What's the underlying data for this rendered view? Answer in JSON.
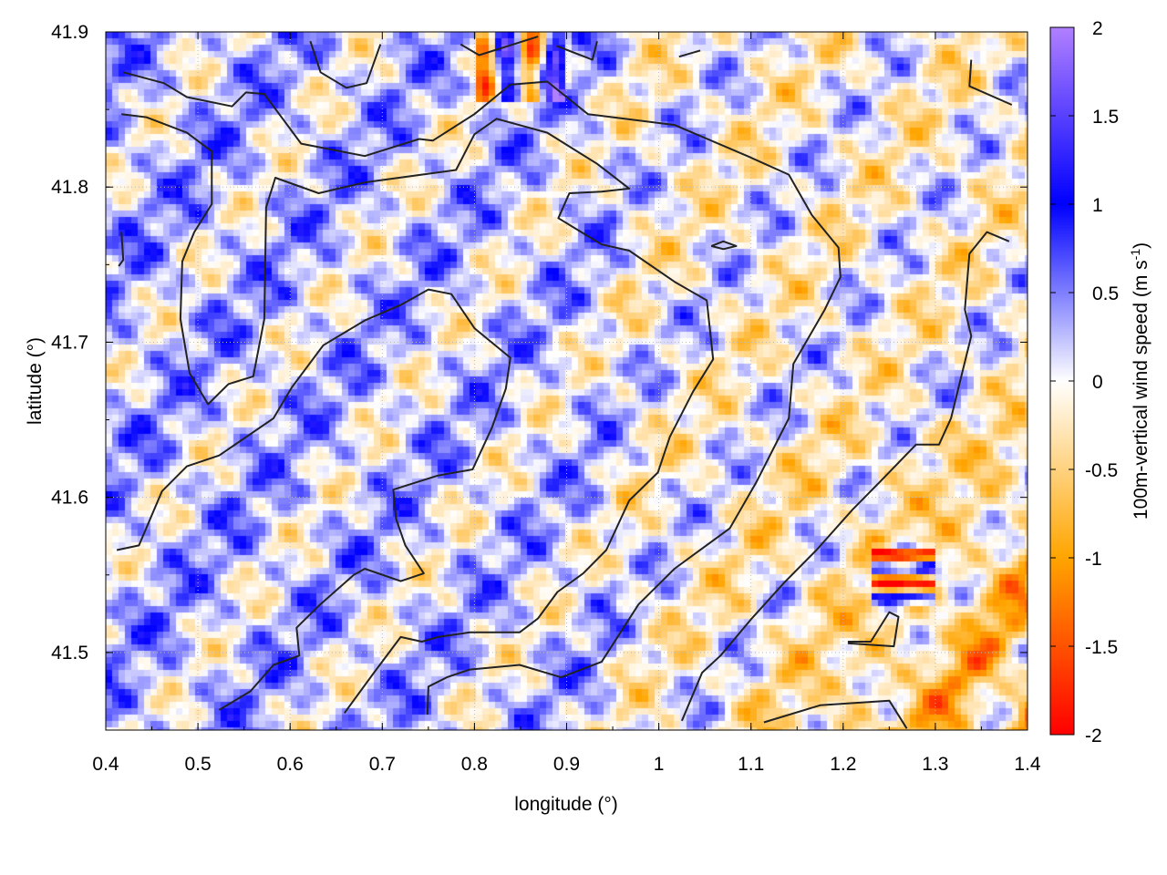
{
  "chart_data": {
    "type": "heatmap",
    "title": "",
    "xlabel": "longitude (°)",
    "ylabel": "latitude (°)",
    "xlim": [
      0.4,
      1.4
    ],
    "ylim": [
      41.45,
      41.9
    ],
    "xticks": [
      "0.4",
      "0.5",
      "0.6",
      "0.7",
      "0.8",
      "0.9",
      "1",
      "1.1",
      "1.2",
      "1.3",
      "1.4"
    ],
    "yticks": [
      "41.5",
      "41.6",
      "41.7",
      "41.8",
      "41.9"
    ],
    "grid": true,
    "colorbar": {
      "label": "100m-vertical wind speed (m s",
      "label_sup": "-1",
      "label_end": ")",
      "range": [
        -2,
        2
      ],
      "ticks": [
        "2",
        "1.5",
        "1",
        "0.5",
        "0",
        "-0.5",
        "-1",
        "-1.5",
        "-2"
      ],
      "palette": [
        {
          "v": -2,
          "color": "#ff0000"
        },
        {
          "v": -1,
          "color": "#ffa500"
        },
        {
          "v": 0,
          "color": "#ffffff"
        },
        {
          "v": 1,
          "color": "#0000ff"
        },
        {
          "v": 2,
          "color": "#b080ff"
        }
      ]
    },
    "contour_color": "#222222",
    "contours": [
      [
        [
          0.419,
          41.874
        ],
        [
          0.463,
          41.867
        ],
        [
          0.488,
          41.858
        ],
        [
          0.537,
          41.852
        ],
        [
          0.552,
          41.861
        ],
        [
          0.572,
          41.86
        ],
        [
          0.612,
          41.828
        ],
        [
          0.681,
          41.82
        ],
        [
          0.74,
          41.831
        ],
        [
          0.755,
          41.83
        ],
        [
          0.8,
          41.847
        ],
        [
          0.839,
          41.866
        ],
        [
          0.879,
          41.868
        ],
        [
          0.923,
          41.847
        ],
        [
          1.017,
          41.84
        ],
        [
          1.096,
          41.82
        ],
        [
          1.141,
          41.808
        ],
        [
          1.166,
          41.782
        ],
        [
          1.195,
          41.761
        ],
        [
          1.197,
          41.742
        ],
        [
          1.18,
          41.721
        ],
        [
          1.146,
          41.686
        ],
        [
          1.141,
          41.651
        ],
        [
          1.106,
          41.61
        ],
        [
          1.077,
          41.58
        ],
        [
          1.017,
          41.554
        ],
        [
          0.978,
          41.531
        ],
        [
          0.938,
          41.494
        ],
        [
          0.894,
          41.484
        ],
        [
          0.849,
          41.492
        ],
        [
          0.795,
          41.489
        ],
        [
          0.77,
          41.484
        ],
        [
          0.75,
          41.478
        ],
        [
          0.749,
          41.46
        ]
      ],
      [
        [
          0.417,
          41.847
        ],
        [
          0.444,
          41.845
        ],
        [
          0.488,
          41.835
        ],
        [
          0.515,
          41.823
        ],
        [
          0.515,
          41.789
        ],
        [
          0.496,
          41.771
        ],
        [
          0.483,
          41.752
        ],
        [
          0.481,
          41.715
        ],
        [
          0.491,
          41.68
        ],
        [
          0.511,
          41.66
        ],
        [
          0.533,
          41.673
        ],
        [
          0.56,
          41.678
        ],
        [
          0.572,
          41.715
        ],
        [
          0.574,
          41.787
        ],
        [
          0.584,
          41.806
        ],
        [
          0.631,
          41.796
        ],
        [
          0.681,
          41.803
        ],
        [
          0.78,
          41.811
        ],
        [
          0.8,
          41.834
        ],
        [
          0.824,
          41.844
        ],
        [
          0.879,
          41.835
        ],
        [
          0.933,
          41.815
        ],
        [
          0.968,
          41.799
        ],
        [
          0.938,
          41.797
        ],
        [
          0.903,
          41.796
        ],
        [
          0.891,
          41.78
        ],
        [
          0.938,
          41.763
        ],
        [
          0.968,
          41.759
        ],
        [
          1.017,
          41.739
        ],
        [
          1.052,
          41.727
        ],
        [
          1.059,
          41.689
        ],
        [
          1.037,
          41.668
        ],
        [
          1.012,
          41.639
        ],
        [
          0.999,
          41.616
        ],
        [
          0.968,
          41.598
        ],
        [
          0.943,
          41.566
        ],
        [
          0.918,
          41.551
        ],
        [
          0.89,
          41.539
        ],
        [
          0.869,
          41.522
        ],
        [
          0.849,
          41.513
        ],
        [
          0.795,
          41.513
        ],
        [
          0.76,
          41.51
        ],
        [
          0.743,
          41.507
        ],
        [
          0.72,
          41.51
        ],
        [
          0.691,
          41.487
        ],
        [
          0.659,
          41.461
        ]
      ],
      [
        [
          0.412,
          41.566
        ],
        [
          0.436,
          41.569
        ],
        [
          0.461,
          41.604
        ],
        [
          0.488,
          41.62
        ],
        [
          0.523,
          41.627
        ],
        [
          0.582,
          41.651
        ],
        [
          0.602,
          41.671
        ],
        [
          0.636,
          41.698
        ],
        [
          0.681,
          41.714
        ],
        [
          0.72,
          41.724
        ],
        [
          0.75,
          41.734
        ],
        [
          0.775,
          41.731
        ],
        [
          0.8,
          41.709
        ],
        [
          0.839,
          41.69
        ],
        [
          0.834,
          41.67
        ],
        [
          0.819,
          41.645
        ],
        [
          0.798,
          41.618
        ],
        [
          0.76,
          41.614
        ],
        [
          0.712,
          41.605
        ],
        [
          0.715,
          41.586
        ],
        [
          0.725,
          41.569
        ],
        [
          0.745,
          41.551
        ],
        [
          0.72,
          41.546
        ],
        [
          0.681,
          41.554
        ],
        [
          0.669,
          41.55
        ],
        [
          0.631,
          41.53
        ],
        [
          0.607,
          41.516
        ],
        [
          0.61,
          41.498
        ],
        [
          0.582,
          41.492
        ],
        [
          0.557,
          41.475
        ],
        [
          0.523,
          41.463
        ]
      ],
      [
        [
          1.38,
          41.765
        ],
        [
          1.356,
          41.771
        ],
        [
          1.337,
          41.757
        ],
        [
          1.332,
          41.721
        ],
        [
          1.339,
          41.704
        ],
        [
          1.324,
          41.668
        ],
        [
          1.317,
          41.651
        ],
        [
          1.304,
          41.634
        ],
        [
          1.279,
          41.634
        ],
        [
          1.24,
          41.61
        ],
        [
          1.21,
          41.592
        ],
        [
          1.171,
          41.566
        ],
        [
          1.136,
          41.545
        ],
        [
          1.101,
          41.522
        ],
        [
          1.067,
          41.498
        ],
        [
          1.047,
          41.487
        ],
        [
          1.025,
          41.456
        ]
      ],
      [
        [
          1.205,
          41.507
        ],
        [
          1.23,
          41.507
        ],
        [
          1.25,
          41.526
        ],
        [
          1.26,
          41.523
        ],
        [
          1.255,
          41.504
        ],
        [
          1.205,
          41.506
        ]
      ],
      [
        [
          1.057,
          41.762
        ],
        [
          1.07,
          41.765
        ],
        [
          1.084,
          41.762
        ],
        [
          1.07,
          41.76
        ],
        [
          1.057,
          41.762
        ]
      ],
      [
        [
          1.114,
          41.455
        ],
        [
          1.175,
          41.466
        ],
        [
          1.25,
          41.469
        ],
        [
          1.269,
          41.451
        ]
      ],
      [
        [
          0.622,
          41.894
        ],
        [
          0.633,
          41.874
        ],
        [
          0.661,
          41.864
        ],
        [
          0.683,
          41.867
        ],
        [
          0.698,
          41.892
        ]
      ],
      [
        [
          0.785,
          41.892
        ],
        [
          0.805,
          41.885
        ],
        [
          0.869,
          41.897
        ]
      ],
      [
        [
          0.889,
          41.891
        ],
        [
          0.928,
          41.882
        ],
        [
          0.933,
          41.894
        ]
      ],
      [
        [
          1.022,
          41.884
        ],
        [
          1.045,
          41.888
        ]
      ],
      [
        [
          1.339,
          41.882
        ],
        [
          1.337,
          41.865
        ],
        [
          1.383,
          41.853
        ]
      ],
      [
        [
          0.417,
          41.771
        ],
        [
          0.419,
          41.753
        ],
        [
          0.414,
          41.749
        ]
      ]
    ]
  }
}
